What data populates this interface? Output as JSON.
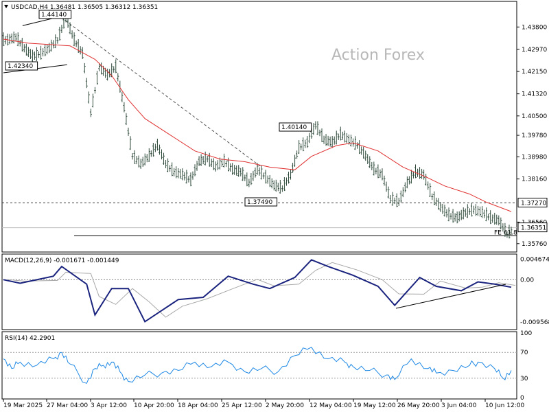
{
  "header": {
    "symbol_line": "USDCAD,H4  1.36481 1.36505 1.36312 1.36351"
  },
  "watermark": "Action Forex",
  "price_axis": {
    "ticks": [
      "1.43800",
      "1.42970",
      "1.42150",
      "1.41320",
      "1.40500",
      "1.39780",
      "1.38980",
      "1.38160",
      "1.36560",
      "1.35760"
    ],
    "current_price": "1.36351",
    "level_label": "1.37270"
  },
  "annotations": {
    "high_1": "1.44140",
    "low_1": "1.42340",
    "high_2": "1.40140",
    "low_2": "1.37490",
    "fe_label": "FE 61.8"
  },
  "macd": {
    "title": "MACD(12,26,9) -0.001671 -0.001449",
    "ticks": [
      "0.004674",
      "0.00",
      "-0.009568"
    ]
  },
  "rsi": {
    "title": "RSI(14) 42.2901",
    "ticks": [
      "100",
      "70",
      "30",
      "0"
    ]
  },
  "date_axis": [
    "19 Mar 2025",
    "27 Mar 04:00",
    "3 Apr 12:00",
    "10 Apr 20:00",
    "18 Apr 04:00",
    "25 Apr 12:00",
    "2 May 20:00",
    "12 May 04:00",
    "19 May 12:00",
    "26 May 20:00",
    "3 Jun 04:00",
    "10 Jun 12:00"
  ],
  "chart_data": {
    "type": "line",
    "symbol": "USDCAD",
    "timeframe": "H4",
    "ohlc_last": {
      "open": 1.36481,
      "high": 1.36505,
      "low": 1.36312,
      "close": 1.36351
    },
    "price_ylim": [
      1.355,
      1.447
    ],
    "close_path": [
      {
        "t": "19 Mar",
        "v": 1.433
      },
      {
        "t": "21 Mar",
        "v": 1.434
      },
      {
        "t": "24 Mar",
        "v": 1.43
      },
      {
        "t": "25 Mar",
        "v": 1.427
      },
      {
        "t": "26 Mar",
        "v": 1.428
      },
      {
        "t": "27 Mar",
        "v": 1.43
      },
      {
        "t": "28 Mar",
        "v": 1.433
      },
      {
        "t": "31 Mar",
        "v": 1.4414
      },
      {
        "t": "1 Apr",
        "v": 1.433
      },
      {
        "t": "2 Apr",
        "v": 1.428
      },
      {
        "t": "3 Apr",
        "v": 1.406
      },
      {
        "t": "4 Apr",
        "v": 1.423
      },
      {
        "t": "7 Apr",
        "v": 1.42
      },
      {
        "t": "8 Apr",
        "v": 1.423
      },
      {
        "t": "9 Apr",
        "v": 1.408
      },
      {
        "t": "10 Apr",
        "v": 1.39
      },
      {
        "t": "11 Apr",
        "v": 1.387
      },
      {
        "t": "14 Apr",
        "v": 1.39
      },
      {
        "t": "15 Apr",
        "v": 1.394
      },
      {
        "t": "16 Apr",
        "v": 1.387
      },
      {
        "t": "17 Apr",
        "v": 1.384
      },
      {
        "t": "18 Apr",
        "v": 1.383
      },
      {
        "t": "21 Apr",
        "v": 1.381
      },
      {
        "t": "22 Apr",
        "v": 1.388
      },
      {
        "t": "23 Apr",
        "v": 1.389
      },
      {
        "t": "24 Apr",
        "v": 1.386
      },
      {
        "t": "25 Apr",
        "v": 1.388
      },
      {
        "t": "28 Apr",
        "v": 1.385
      },
      {
        "t": "29 Apr",
        "v": 1.384
      },
      {
        "t": "30 Apr",
        "v": 1.38
      },
      {
        "t": "1 May",
        "v": 1.385
      },
      {
        "t": "2 May",
        "v": 1.382
      },
      {
        "t": "5 May",
        "v": 1.379
      },
      {
        "t": "6 May",
        "v": 1.378
      },
      {
        "t": "7 May",
        "v": 1.383
      },
      {
        "t": "8 May",
        "v": 1.393
      },
      {
        "t": "9 May",
        "v": 1.395
      },
      {
        "t": "12 May",
        "v": 1.4014
      },
      {
        "t": "13 May",
        "v": 1.396
      },
      {
        "t": "14 May",
        "v": 1.395
      },
      {
        "t": "15 May",
        "v": 1.398
      },
      {
        "t": "16 May",
        "v": 1.396
      },
      {
        "t": "19 May",
        "v": 1.394
      },
      {
        "t": "20 May",
        "v": 1.39
      },
      {
        "t": "21 May",
        "v": 1.385
      },
      {
        "t": "22 May",
        "v": 1.383
      },
      {
        "t": "23 May",
        "v": 1.374
      },
      {
        "t": "26 May",
        "v": 1.373
      },
      {
        "t": "27 May",
        "v": 1.38
      },
      {
        "t": "28 May",
        "v": 1.384
      },
      {
        "t": "29 May",
        "v": 1.383
      },
      {
        "t": "30 May",
        "v": 1.375
      },
      {
        "t": "2 Jun",
        "v": 1.371
      },
      {
        "t": "3 Jun",
        "v": 1.368
      },
      {
        "t": "4 Jun",
        "v": 1.367
      },
      {
        "t": "5 Jun",
        "v": 1.369
      },
      {
        "t": "6 Jun",
        "v": 1.37
      },
      {
        "t": "9 Jun",
        "v": 1.369
      },
      {
        "t": "10 Jun",
        "v": 1.367
      },
      {
        "t": "11 Jun",
        "v": 1.366
      },
      {
        "t": "12 Jun",
        "v": 1.361
      },
      {
        "t": "13 Jun",
        "v": 1.3635
      }
    ],
    "ma_path": [
      {
        "t": "19 Mar",
        "v": 1.4335
      },
      {
        "t": "25 Mar",
        "v": 1.432
      },
      {
        "t": "1 Apr",
        "v": 1.431
      },
      {
        "t": "4 Apr",
        "v": 1.426
      },
      {
        "t": "8 Apr",
        "v": 1.42
      },
      {
        "t": "10 Apr",
        "v": 1.411
      },
      {
        "t": "14 Apr",
        "v": 1.404
      },
      {
        "t": "17 Apr",
        "v": 1.398
      },
      {
        "t": "22 Apr",
        "v": 1.392
      },
      {
        "t": "25 Apr",
        "v": 1.389
      },
      {
        "t": "30 Apr",
        "v": 1.388
      },
      {
        "t": "5 May",
        "v": 1.386
      },
      {
        "t": "8 May",
        "v": 1.385
      },
      {
        "t": "12 May",
        "v": 1.39
      },
      {
        "t": "15 May",
        "v": 1.394
      },
      {
        "t": "19 May",
        "v": 1.395
      },
      {
        "t": "22 May",
        "v": 1.392
      },
      {
        "t": "27 May",
        "v": 1.386
      },
      {
        "t": "30 May",
        "v": 1.382
      },
      {
        "t": "3 Jun",
        "v": 1.379
      },
      {
        "t": "6 Jun",
        "v": 1.376
      },
      {
        "t": "10 Jun",
        "v": 1.373
      },
      {
        "t": "13 Jun",
        "v": 1.3695
      }
    ],
    "horizontal_levels": [
      {
        "value": 1.3727,
        "style": "dashed"
      },
      {
        "value": 1.3635,
        "style": "solid-light"
      },
      {
        "value": 1.3605,
        "style": "solid"
      }
    ],
    "macd_ylim": [
      -0.011,
      0.0055
    ],
    "macd_main": [
      {
        "t": "19 Mar",
        "v": 0.0
      },
      {
        "t": "24 Mar",
        "v": -0.0008
      },
      {
        "t": "28 Mar",
        "v": 0.0008
      },
      {
        "t": "31 Mar",
        "v": 0.003
      },
      {
        "t": "3 Apr",
        "v": -0.001
      },
      {
        "t": "4 Apr",
        "v": -0.008
      },
      {
        "t": "8 Apr",
        "v": -0.002
      },
      {
        "t": "10 Apr",
        "v": -0.002
      },
      {
        "t": "14 Apr",
        "v": -0.0095
      },
      {
        "t": "16 Apr",
        "v": -0.007
      },
      {
        "t": "18 Apr",
        "v": -0.0045
      },
      {
        "t": "23 Apr",
        "v": -0.004
      },
      {
        "t": "28 Apr",
        "v": 0.0008
      },
      {
        "t": "1 May",
        "v": -0.001
      },
      {
        "t": "5 May",
        "v": -0.002
      },
      {
        "t": "8 May",
        "v": 0.0005
      },
      {
        "t": "12 May",
        "v": 0.0045
      },
      {
        "t": "14 May",
        "v": 0.003
      },
      {
        "t": "19 May",
        "v": 0.001
      },
      {
        "t": "22 May",
        "v": -0.0015
      },
      {
        "t": "26 May",
        "v": -0.0058
      },
      {
        "t": "29 May",
        "v": 0.0005
      },
      {
        "t": "2 Jun",
        "v": -0.0015
      },
      {
        "t": "5 Jun",
        "v": -0.0025
      },
      {
        "t": "9 Jun",
        "v": -0.0005
      },
      {
        "t": "11 Jun",
        "v": -0.001
      },
      {
        "t": "13 Jun",
        "v": -0.0017
      }
    ],
    "rsi_ylim": [
      0,
      100
    ],
    "rsi_path": [
      {
        "t": "19 Mar",
        "v": 60
      },
      {
        "t": "21 Mar",
        "v": 45
      },
      {
        "t": "24 Mar",
        "v": 55
      },
      {
        "t": "26 Mar",
        "v": 50
      },
      {
        "t": "28 Mar",
        "v": 60
      },
      {
        "t": "31 Mar",
        "v": 70
      },
      {
        "t": "1 Apr",
        "v": 52
      },
      {
        "t": "3 Apr",
        "v": 22
      },
      {
        "t": "4 Apr",
        "v": 45
      },
      {
        "t": "7 Apr",
        "v": 50
      },
      {
        "t": "8 Apr",
        "v": 55
      },
      {
        "t": "9 Apr",
        "v": 40
      },
      {
        "t": "10 Apr",
        "v": 25
      },
      {
        "t": "14 Apr",
        "v": 35
      },
      {
        "t": "16 Apr",
        "v": 38
      },
      {
        "t": "18 Apr",
        "v": 42
      },
      {
        "t": "22 Apr",
        "v": 55
      },
      {
        "t": "24 Apr",
        "v": 48
      },
      {
        "t": "28 Apr",
        "v": 55
      },
      {
        "t": "30 Apr",
        "v": 40
      },
      {
        "t": "2 May",
        "v": 45
      },
      {
        "t": "6 May",
        "v": 40
      },
      {
        "t": "8 May",
        "v": 65
      },
      {
        "t": "12 May",
        "v": 78
      },
      {
        "t": "14 May",
        "v": 60
      },
      {
        "t": "16 May",
        "v": 55
      },
      {
        "t": "19 May",
        "v": 48
      },
      {
        "t": "21 May",
        "v": 42
      },
      {
        "t": "23 May",
        "v": 35
      },
      {
        "t": "26 May",
        "v": 28
      },
      {
        "t": "28 May",
        "v": 60
      },
      {
        "t": "30 May",
        "v": 45
      },
      {
        "t": "2 Jun",
        "v": 38
      },
      {
        "t": "4 Jun",
        "v": 42
      },
      {
        "t": "6 Jun",
        "v": 50
      },
      {
        "t": "9 Jun",
        "v": 55
      },
      {
        "t": "11 Jun",
        "v": 45
      },
      {
        "t": "12 Jun",
        "v": 30
      },
      {
        "t": "13 Jun",
        "v": 42
      }
    ]
  }
}
